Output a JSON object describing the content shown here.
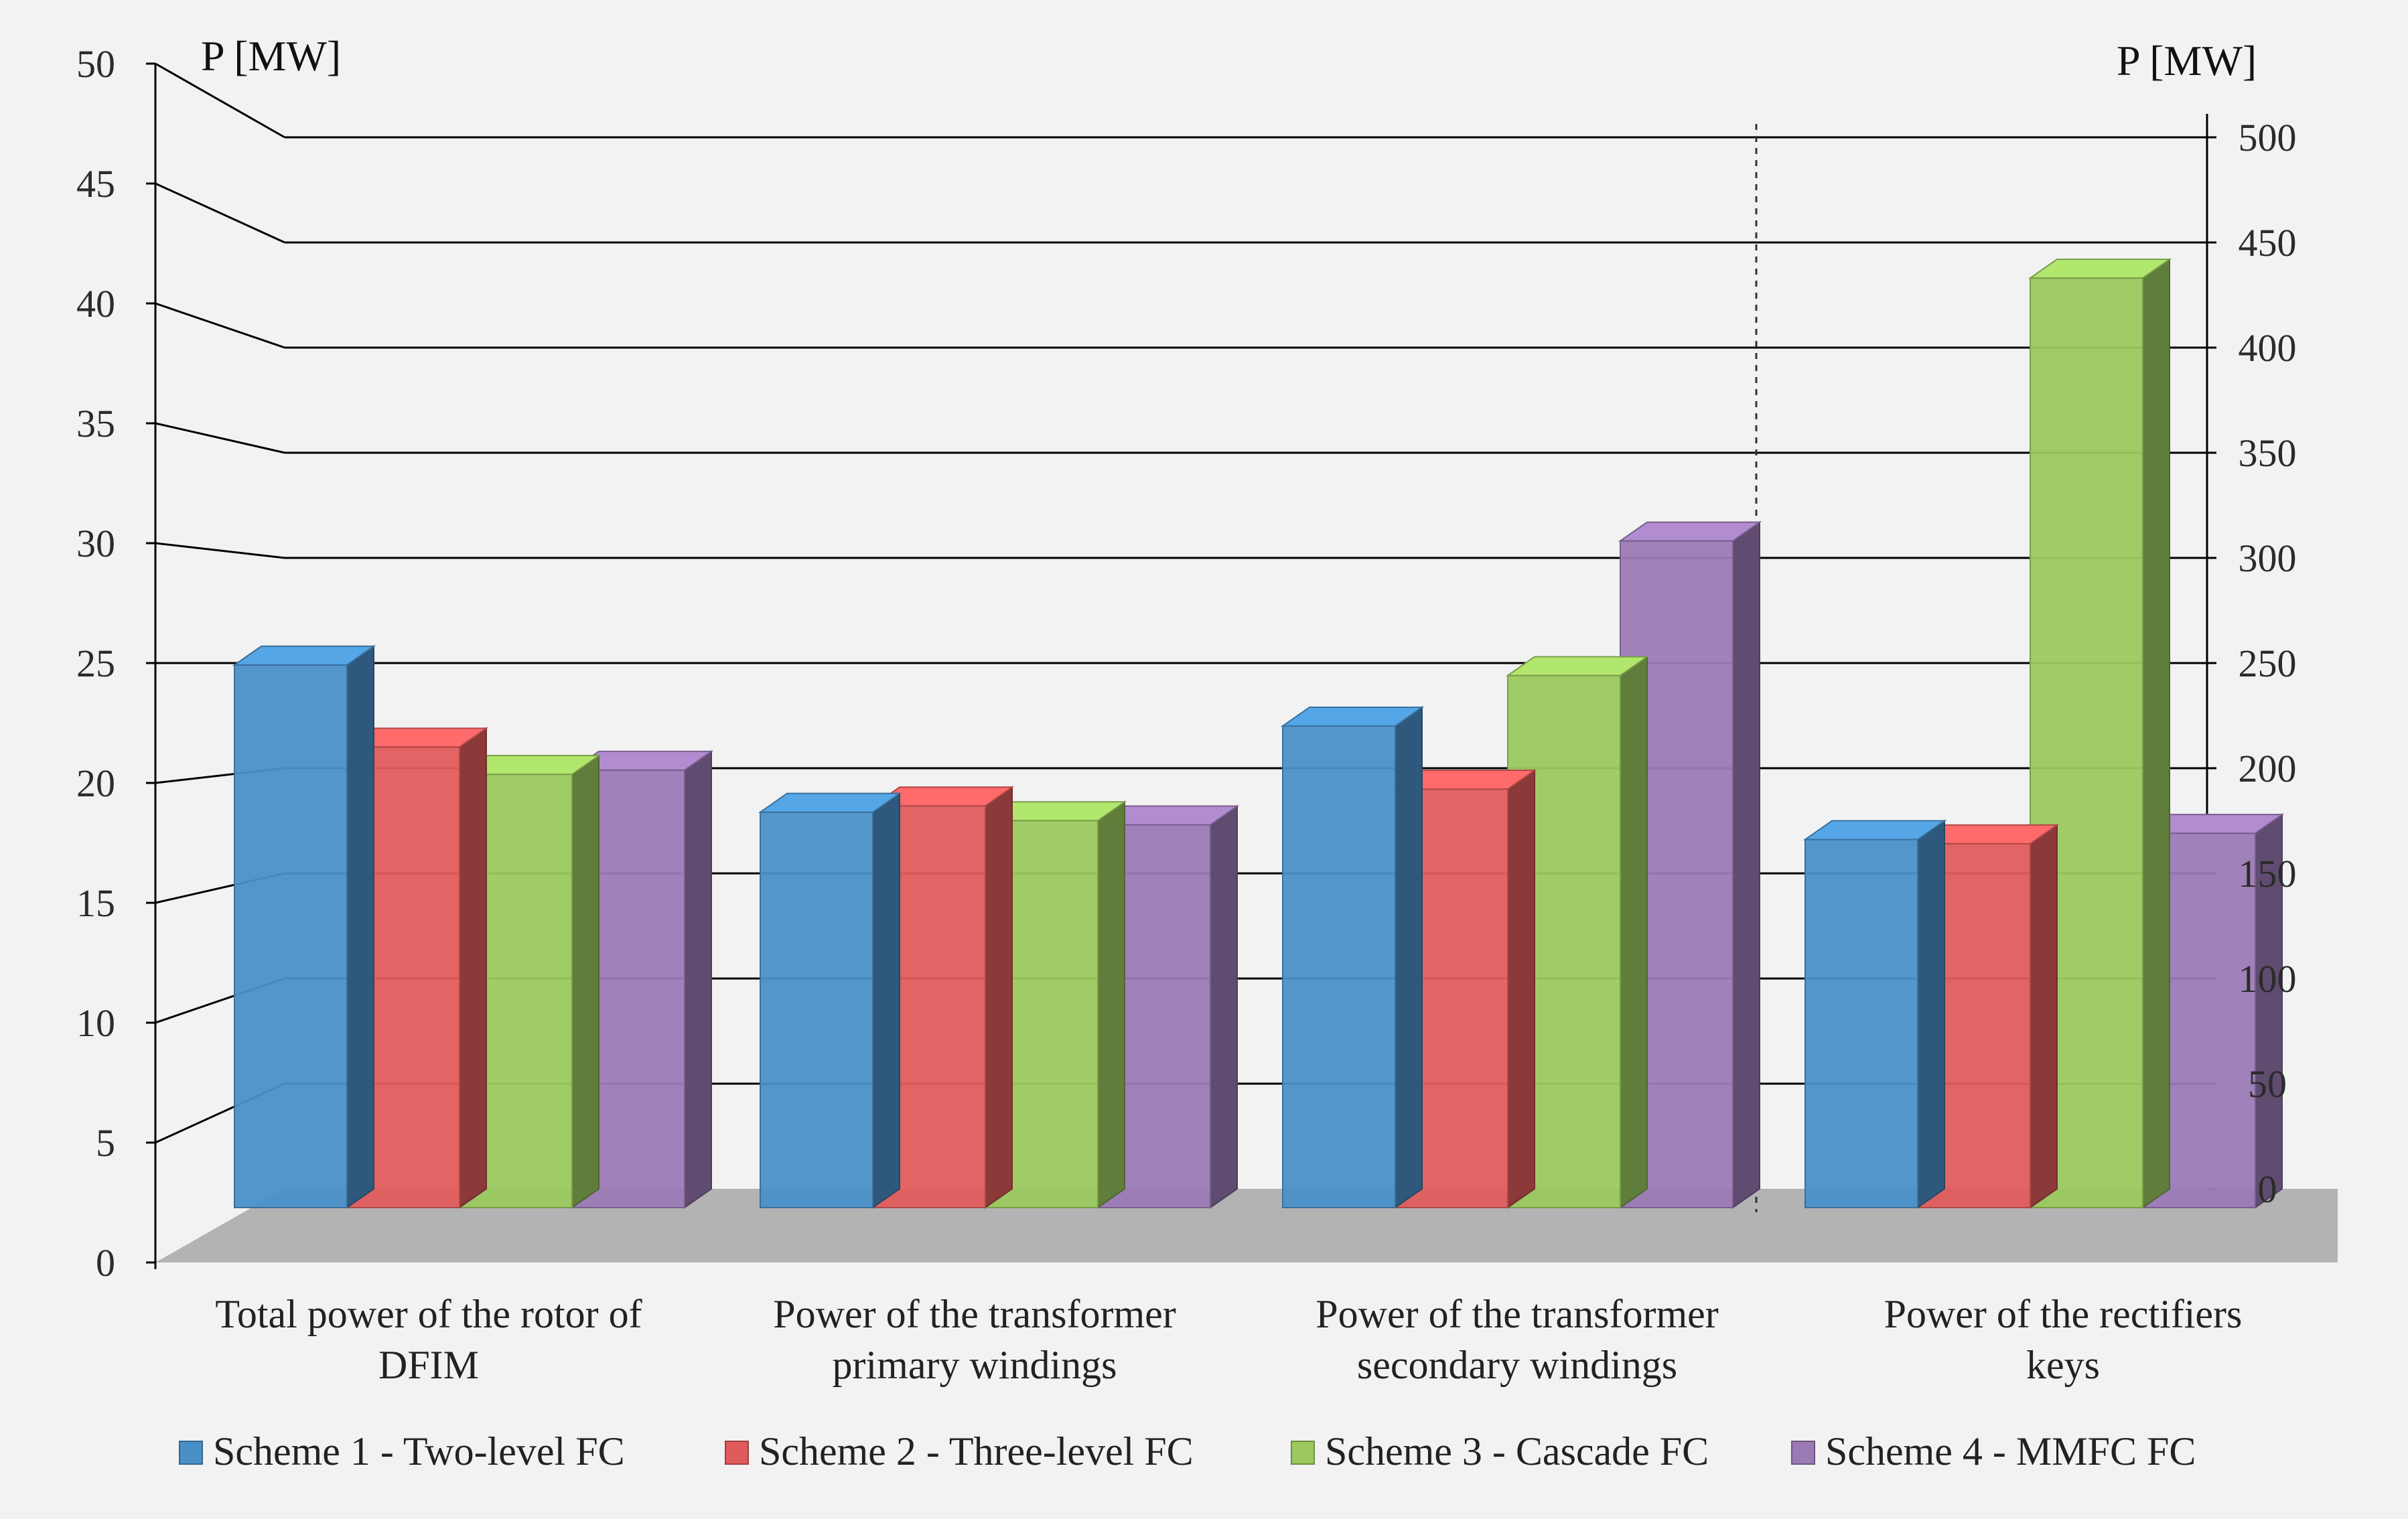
{
  "chart_data": {
    "type": "bar",
    "style": "3d-clustered-column",
    "categories": [
      [
        "Total power of the rotor of",
        "DFIM"
      ],
      [
        "Power of the transformer",
        "primary windings"
      ],
      [
        "Power of the transformer",
        "secondary windings"
      ],
      [
        "Power of the rectifiers",
        "keys"
      ]
    ],
    "series": [
      {
        "name": "Scheme 1 - Two-level FC",
        "color": "#4a90c8",
        "values": [
          25.8,
          18.8,
          22.9,
          175
        ]
      },
      {
        "name": "Scheme 2 - Three-level FC",
        "color": "#e05c5c",
        "values": [
          21.9,
          19.1,
          19.9,
          173
        ]
      },
      {
        "name": "Scheme 3 - Cascade FC",
        "color": "#9bc95f",
        "values": [
          20.6,
          18.4,
          25.3,
          442
        ]
      },
      {
        "name": "Scheme 4 - MMFC FC",
        "color": "#9b7ab5",
        "values": [
          20.8,
          18.2,
          31.7,
          178
        ]
      }
    ],
    "primary_axis": {
      "label": "P [MW]",
      "ylim": [
        0,
        50
      ],
      "ticks": [
        "0",
        "5",
        "10",
        "15",
        "20",
        "25",
        "30",
        "35",
        "40",
        "45",
        "50"
      ]
    },
    "secondary_axis": {
      "label": "P [MW]",
      "ylim": [
        0,
        500
      ],
      "ticks": [
        "0",
        "50",
        "100",
        "150",
        "200",
        "250",
        "300",
        "350",
        "400",
        "450",
        "500"
      ],
      "applies_to_category": 3
    },
    "grid": true,
    "legend": "bottom"
  }
}
